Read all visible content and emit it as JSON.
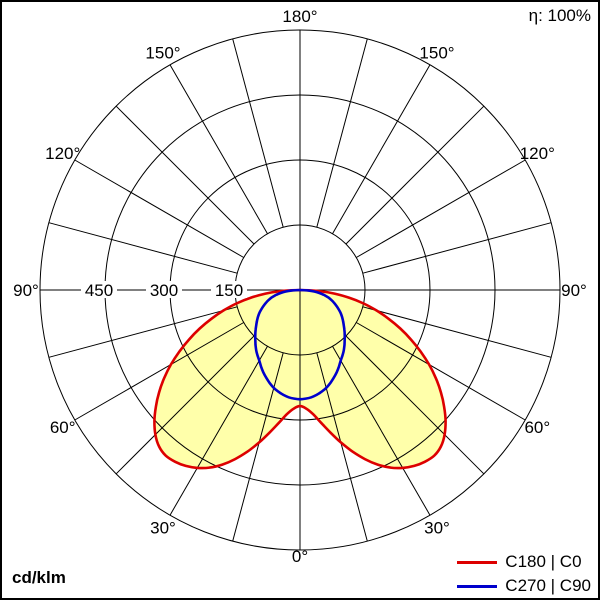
{
  "figure": {
    "border_color": "#000000",
    "background": "#ffffff"
  },
  "chart_data": {
    "type": "polar_intensity_distribution",
    "title": "",
    "unit": "cd/klm",
    "efficiency": "η: 100%",
    "grid": {
      "max_value": 600,
      "ring_values": [
        150,
        300,
        450,
        600
      ],
      "ring_labels": [
        "150",
        "300",
        "450"
      ],
      "spoke_step_deg": 15,
      "angle_label_step_deg": 30,
      "angle_values": [
        0,
        30,
        60,
        90,
        120,
        150,
        180
      ],
      "angle_labels": [
        "0°",
        "30°",
        "60°",
        "90°",
        "120°",
        "150°",
        "180°"
      ],
      "grid_color": "#000000"
    },
    "series": [
      {
        "label": "C180 | C0",
        "color": "#dd0000",
        "fill_color": "#ffffaa",
        "symmetric": true,
        "points_gamma_intensity": [
          [
            0,
            268
          ],
          [
            3,
            274
          ],
          [
            6,
            288
          ],
          [
            9,
            310
          ],
          [
            12,
            336
          ],
          [
            15,
            364
          ],
          [
            18,
            392
          ],
          [
            21,
            418
          ],
          [
            24,
            441
          ],
          [
            27,
            460
          ],
          [
            30,
            474
          ],
          [
            33,
            484
          ],
          [
            36,
            490
          ],
          [
            39,
            492
          ],
          [
            42,
            486
          ],
          [
            45,
            472
          ],
          [
            48,
            452
          ],
          [
            51,
            428
          ],
          [
            54,
            402
          ],
          [
            57,
            374
          ],
          [
            60,
            344
          ],
          [
            63,
            312
          ],
          [
            66,
            280
          ],
          [
            69,
            248
          ],
          [
            72,
            215
          ],
          [
            75,
            183
          ],
          [
            78,
            150
          ],
          [
            81,
            116
          ],
          [
            84,
            80
          ],
          [
            87,
            42
          ],
          [
            90,
            0
          ]
        ]
      },
      {
        "label": "C270 | C90",
        "color": "#0000cc",
        "fill_color": "none",
        "symmetric": true,
        "points_gamma_intensity": [
          [
            0,
            252
          ],
          [
            3,
            251
          ],
          [
            6,
            249
          ],
          [
            9,
            245
          ],
          [
            12,
            240
          ],
          [
            15,
            234
          ],
          [
            18,
            226
          ],
          [
            21,
            217
          ],
          [
            24,
            208
          ],
          [
            27,
            198
          ],
          [
            30,
            188
          ],
          [
            33,
            180
          ],
          [
            36,
            172
          ],
          [
            39,
            163
          ],
          [
            42,
            154
          ],
          [
            45,
            146
          ],
          [
            48,
            138
          ],
          [
            51,
            130
          ],
          [
            54,
            123
          ],
          [
            57,
            116
          ],
          [
            60,
            109
          ],
          [
            63,
            101
          ],
          [
            66,
            93
          ],
          [
            69,
            85
          ],
          [
            72,
            77
          ],
          [
            75,
            68
          ],
          [
            78,
            58
          ],
          [
            81,
            46
          ],
          [
            84,
            33
          ],
          [
            87,
            18
          ],
          [
            90,
            0
          ]
        ]
      }
    ]
  }
}
